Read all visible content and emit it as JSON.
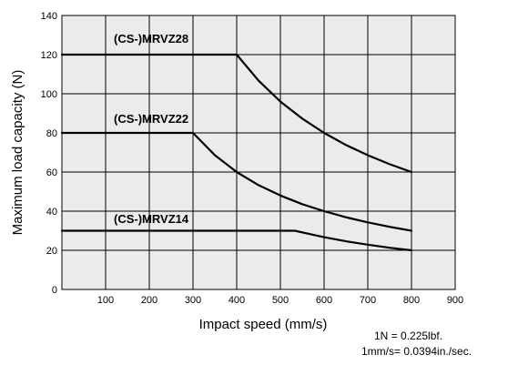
{
  "chart_data": {
    "type": "line",
    "title": "",
    "xlabel": "Impact speed (mm/s)",
    "ylabel": "Maximum load capacity (N)",
    "xlim": [
      0,
      900
    ],
    "ylim": [
      0,
      140
    ],
    "x_ticks": [
      100,
      200,
      300,
      400,
      500,
      600,
      700,
      800,
      900
    ],
    "y_ticks": [
      0,
      20,
      40,
      60,
      80,
      100,
      120,
      140
    ],
    "grid": true,
    "background": "#ebebeb",
    "line_color": "#000000",
    "series": [
      {
        "name": "(CS-)MRVZ28",
        "x": [
          0,
          400,
          450,
          500,
          550,
          600,
          650,
          700,
          750,
          800
        ],
        "y": [
          120,
          120,
          106.7,
          96,
          87.3,
          80,
          73.8,
          68.6,
          64,
          60
        ]
      },
      {
        "name": "(CS-)MRVZ22",
        "x": [
          0,
          300,
          350,
          400,
          450,
          500,
          550,
          600,
          650,
          700,
          750,
          800
        ],
        "y": [
          80,
          80,
          68.6,
          60,
          53.3,
          48,
          43.6,
          40,
          36.9,
          34.3,
          32,
          30
        ]
      },
      {
        "name": "(CS-)MRVZ14",
        "x": [
          0,
          533,
          600,
          650,
          700,
          750,
          800
        ],
        "y": [
          30,
          30,
          26.7,
          24.6,
          22.9,
          21.3,
          20
        ]
      }
    ],
    "annotations": [
      "1N = 0.225lbf.",
      "1mm/s= 0.0394in./sec."
    ]
  }
}
